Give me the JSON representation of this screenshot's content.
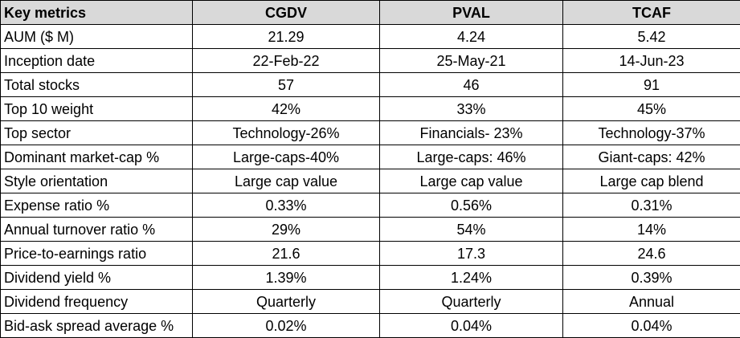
{
  "table": {
    "headers": [
      "Key metrics",
      "CGDV",
      "PVAL",
      "TCAF"
    ],
    "rows": [
      [
        "AUM ($ M)",
        "21.29",
        "4.24",
        "5.42"
      ],
      [
        "Inception date",
        "22-Feb-22",
        "25-May-21",
        "14-Jun-23"
      ],
      [
        "Total stocks",
        "57",
        "46",
        "91"
      ],
      [
        "Top 10 weight",
        "42%",
        "33%",
        "45%"
      ],
      [
        "Top sector",
        "Technology-26%",
        "Financials- 23%",
        "Technology-37%"
      ],
      [
        "Dominant market-cap %",
        "Large-caps-40%",
        "Large-caps: 46%",
        "Giant-caps: 42%"
      ],
      [
        "Style orientation",
        "Large cap value",
        "Large cap value",
        "Large cap blend"
      ],
      [
        "Expense ratio %",
        "0.33%",
        "0.56%",
        "0.31%"
      ],
      [
        "Annual turnover ratio %",
        "29%",
        "54%",
        "14%"
      ],
      [
        "Price-to-earnings ratio",
        "21.6",
        "17.3",
        "24.6"
      ],
      [
        "Dividend yield %",
        "1.39%",
        "1.24%",
        "0.39%"
      ],
      [
        "Dividend frequency",
        "Quarterly",
        "Quarterly",
        "Annual"
      ],
      [
        "Bid-ask spread average %",
        "0.02%",
        "0.04%",
        "0.04%"
      ]
    ]
  },
  "colors": {
    "header_background": "#d9d9d9",
    "border": "#000000",
    "text": "#000000"
  }
}
